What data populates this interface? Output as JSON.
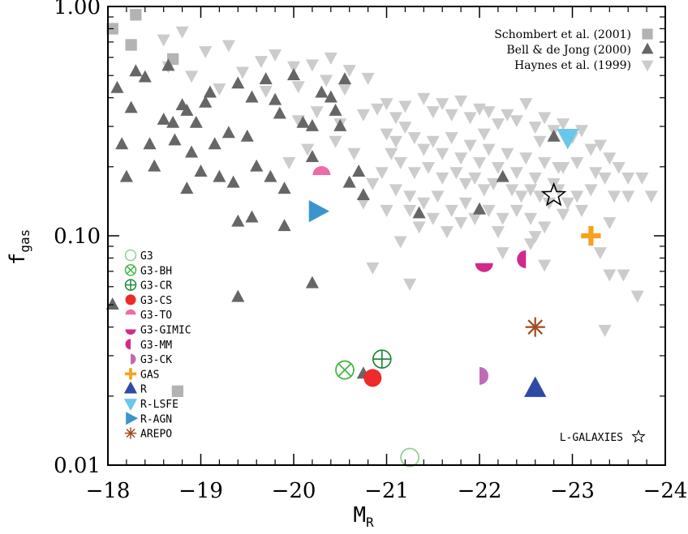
{
  "chart_data": {
    "type": "scatter",
    "xlabel": "M",
    "xlabel_sub": "R",
    "ylabel": "f",
    "ylabel_sub": "gas",
    "xlim": [
      -18,
      -24
    ],
    "ylim": [
      0.01,
      1.0
    ],
    "yscale": "log",
    "x_ticks": [
      -18,
      -19,
      -20,
      -21,
      -22,
      -23,
      -24
    ],
    "x_tick_labels": [
      "−18",
      "−19",
      "−20",
      "−21",
      "−22",
      "−23",
      "−24"
    ],
    "y_ticks": [
      0.01,
      0.1,
      1.0
    ],
    "y_tick_labels": [
      "0.01",
      "0.10",
      "1.00"
    ],
    "grid": false,
    "reference_legend_position": "top-right",
    "model_legend_position": "bottom-left",
    "reference_series": [
      {
        "name": "Schombert et al. (2001)",
        "marker": "square",
        "color": "#b3b3b3",
        "points": [
          [
            -18.05,
            0.8
          ],
          [
            -18.3,
            0.92
          ],
          [
            -18.25,
            0.68
          ],
          [
            -18.7,
            0.59
          ],
          [
            -18.75,
            0.021
          ]
        ]
      },
      {
        "name": "Bell & de Jong (2000)",
        "marker": "triangle-up",
        "color": "#666666",
        "points": [
          [
            -18.1,
            0.44
          ],
          [
            -18.15,
            0.25
          ],
          [
            -18.2,
            0.18
          ],
          [
            -18.25,
            0.36
          ],
          [
            -18.3,
            0.52
          ],
          [
            -18.4,
            0.49
          ],
          [
            -18.45,
            0.25
          ],
          [
            -18.5,
            0.2
          ],
          [
            -18.6,
            0.32
          ],
          [
            -18.65,
            0.55
          ],
          [
            -18.7,
            0.31
          ],
          [
            -18.72,
            0.26
          ],
          [
            -18.8,
            0.37
          ],
          [
            -18.85,
            0.35
          ],
          [
            -18.9,
            0.23
          ],
          [
            -18.95,
            0.31
          ],
          [
            -19.0,
            0.19
          ],
          [
            -19.05,
            0.38
          ],
          [
            -19.1,
            0.42
          ],
          [
            -19.15,
            0.25
          ],
          [
            -18.85,
            0.16
          ],
          [
            -19.2,
            0.18
          ],
          [
            -19.3,
            0.28
          ],
          [
            -19.35,
            0.17
          ],
          [
            -19.4,
            0.46
          ],
          [
            -19.5,
            0.27
          ],
          [
            -19.55,
            0.4
          ],
          [
            -19.6,
            0.2
          ],
          [
            -19.7,
            0.48
          ],
          [
            -19.75,
            0.18
          ],
          [
            -19.8,
            0.39
          ],
          [
            -19.85,
            0.34
          ],
          [
            -19.9,
            0.16
          ],
          [
            -20.0,
            0.5
          ],
          [
            -20.1,
            0.31
          ],
          [
            -20.2,
            0.3
          ],
          [
            -20.3,
            0.42
          ],
          [
            -20.4,
            0.4
          ],
          [
            -20.45,
            0.35
          ],
          [
            -20.5,
            0.3
          ],
          [
            -20.55,
            0.48
          ],
          [
            -20.6,
            0.17
          ],
          [
            -20.7,
            0.19
          ],
          [
            -20.75,
            0.15
          ],
          [
            -20.2,
            0.22
          ],
          [
            -19.4,
            0.115
          ],
          [
            -19.55,
            0.12
          ],
          [
            -19.9,
            0.11
          ],
          [
            -20.2,
            0.062
          ],
          [
            -19.4,
            0.054
          ],
          [
            -18.05,
            0.05
          ],
          [
            -20.75,
            0.025
          ],
          [
            -22.0,
            0.13
          ],
          [
            -22.25,
            0.18
          ],
          [
            -22.8,
            0.27
          ],
          [
            -21.35,
            0.125
          ]
        ]
      },
      {
        "name": "Haynes et al. (1999)",
        "marker": "triangle-down",
        "color": "#cccccc",
        "points": [
          [
            -18.6,
            0.72
          ],
          [
            -18.8,
            0.78
          ],
          [
            -19.05,
            0.64
          ],
          [
            -19.3,
            0.68
          ],
          [
            -19.65,
            0.58
          ],
          [
            -19.8,
            0.62
          ],
          [
            -20.0,
            0.55
          ],
          [
            -20.2,
            0.56
          ],
          [
            -20.4,
            0.6
          ],
          [
            -20.6,
            0.53
          ],
          [
            -18.65,
            0.55
          ],
          [
            -18.9,
            0.5
          ],
          [
            -19.2,
            0.44
          ],
          [
            -19.45,
            0.52
          ],
          [
            -19.7,
            0.43
          ],
          [
            -20.05,
            0.45
          ],
          [
            -20.35,
            0.48
          ],
          [
            -20.55,
            0.44
          ],
          [
            -20.8,
            0.49
          ],
          [
            -21.0,
            0.38
          ],
          [
            -20.05,
            0.32
          ],
          [
            -20.25,
            0.35
          ],
          [
            -20.5,
            0.31
          ],
          [
            -20.75,
            0.34
          ],
          [
            -20.9,
            0.36
          ],
          [
            -21.1,
            0.33
          ],
          [
            -21.2,
            0.37
          ],
          [
            -21.4,
            0.4
          ],
          [
            -21.5,
            0.35
          ],
          [
            -21.6,
            0.38
          ],
          [
            -21.7,
            0.34
          ],
          [
            -21.8,
            0.39
          ],
          [
            -21.9,
            0.33
          ],
          [
            -22.0,
            0.36
          ],
          [
            -22.1,
            0.35
          ],
          [
            -22.2,
            0.31
          ],
          [
            -22.3,
            0.34
          ],
          [
            -22.4,
            0.32
          ],
          [
            -22.5,
            0.38
          ],
          [
            -22.6,
            0.3
          ],
          [
            -22.7,
            0.33
          ],
          [
            -22.8,
            0.29
          ],
          [
            -22.9,
            0.31
          ],
          [
            -23.0,
            0.27
          ],
          [
            -23.1,
            0.29
          ],
          [
            -23.2,
            0.24
          ],
          [
            -23.3,
            0.25
          ],
          [
            -23.4,
            0.22
          ],
          [
            -23.5,
            0.2
          ],
          [
            -23.6,
            0.18
          ],
          [
            -21.0,
            0.28
          ],
          [
            -21.1,
            0.26
          ],
          [
            -21.2,
            0.3
          ],
          [
            -21.3,
            0.27
          ],
          [
            -21.4,
            0.24
          ],
          [
            -21.5,
            0.26
          ],
          [
            -21.6,
            0.23
          ],
          [
            -21.7,
            0.27
          ],
          [
            -21.8,
            0.22
          ],
          [
            -21.9,
            0.25
          ],
          [
            -22.0,
            0.21
          ],
          [
            -22.1,
            0.24
          ],
          [
            -22.2,
            0.2
          ],
          [
            -22.3,
            0.23
          ],
          [
            -22.4,
            0.19
          ],
          [
            -22.5,
            0.22
          ],
          [
            -22.6,
            0.18
          ],
          [
            -22.7,
            0.21
          ],
          [
            -22.8,
            0.17
          ],
          [
            -22.9,
            0.2
          ],
          [
            -21.15,
            0.21
          ],
          [
            -21.3,
            0.19
          ],
          [
            -21.45,
            0.2
          ],
          [
            -21.6,
            0.18
          ],
          [
            -21.75,
            0.19
          ],
          [
            -21.85,
            0.17
          ],
          [
            -21.95,
            0.18
          ],
          [
            -22.05,
            0.16
          ],
          [
            -22.15,
            0.17
          ],
          [
            -22.35,
            0.16
          ],
          [
            -22.45,
            0.15
          ],
          [
            -22.55,
            0.16
          ],
          [
            -22.65,
            0.15
          ],
          [
            -22.75,
            0.14
          ],
          [
            -22.85,
            0.16
          ],
          [
            -22.95,
            0.14
          ],
          [
            -23.05,
            0.15
          ],
          [
            -23.2,
            0.16
          ],
          [
            -23.35,
            0.18
          ],
          [
            -23.45,
            0.15
          ],
          [
            -21.1,
            0.16
          ],
          [
            -21.25,
            0.15
          ],
          [
            -21.4,
            0.14
          ],
          [
            -21.55,
            0.15
          ],
          [
            -21.7,
            0.13
          ],
          [
            -21.85,
            0.14
          ],
          [
            -21.95,
            0.12
          ],
          [
            -22.1,
            0.13
          ],
          [
            -22.25,
            0.12
          ],
          [
            -22.4,
            0.13
          ],
          [
            -22.55,
            0.12
          ],
          [
            -22.7,
            0.11
          ],
          [
            -21.35,
            0.11
          ],
          [
            -21.5,
            0.12
          ],
          [
            -21.65,
            0.105
          ],
          [
            -21.8,
            0.115
          ],
          [
            -22.2,
            0.105
          ],
          [
            -22.6,
            0.1
          ],
          [
            -22.9,
            0.125
          ],
          [
            -23.1,
            0.13
          ],
          [
            -21.0,
            0.13
          ],
          [
            -21.25,
            0.13
          ],
          [
            -20.75,
            0.14
          ],
          [
            -20.85,
            0.17
          ],
          [
            -20.95,
            0.19
          ],
          [
            -21.05,
            0.23
          ],
          [
            -20.65,
            0.23
          ],
          [
            -20.45,
            0.26
          ],
          [
            -20.15,
            0.24
          ],
          [
            -19.95,
            0.21
          ],
          [
            -23.4,
            0.115
          ],
          [
            -23.6,
            0.15
          ],
          [
            -23.85,
            0.15
          ],
          [
            -23.75,
            0.18
          ],
          [
            -23.3,
            0.085
          ],
          [
            -23.4,
            0.068
          ],
          [
            -23.55,
            0.068
          ],
          [
            -23.7,
            0.055
          ],
          [
            -23.35,
            0.039
          ],
          [
            -21.25,
            0.062
          ],
          [
            -20.85,
            0.073
          ],
          [
            -22.25,
            0.085
          ],
          [
            -22.7,
            0.075
          ],
          [
            -22.55,
            0.093
          ],
          [
            -21.15,
            0.095
          ],
          [
            -22.85,
            0.2
          ],
          [
            -23.05,
            0.21
          ],
          [
            -22.65,
            0.26
          ],
          [
            -23.25,
            0.19
          ],
          [
            -22.05,
            0.28
          ]
        ]
      }
    ],
    "model_series": [
      {
        "name": "G3",
        "marker": "circle-open",
        "color": "#8fd08f",
        "points": [
          [
            -21.25,
            0.0108
          ]
        ]
      },
      {
        "name": "G3-BH",
        "marker": "circle-x",
        "color": "#44b544",
        "points": [
          [
            -20.55,
            0.026
          ]
        ]
      },
      {
        "name": "G3-CR",
        "marker": "circle-plus",
        "color": "#1f8a3c",
        "points": [
          [
            -20.95,
            0.029
          ]
        ]
      },
      {
        "name": "G3-CS",
        "marker": "circle-filled",
        "color": "#ee2a2a",
        "points": [
          [
            -20.85,
            0.024
          ]
        ]
      },
      {
        "name": "G3-TO",
        "marker": "half-circle-top",
        "color": "#f06aa8",
        "points": [
          [
            -20.3,
            0.184
          ]
        ]
      },
      {
        "name": "G3-GIMIC",
        "marker": "half-circle-bottom",
        "color": "#d12a8a",
        "points": [
          [
            -22.05,
            0.076
          ]
        ]
      },
      {
        "name": "G3-MM",
        "marker": "half-circle-left",
        "color": "#d12a8a",
        "points": [
          [
            -22.5,
            0.079
          ]
        ]
      },
      {
        "name": "G3-CK",
        "marker": "half-circle-right",
        "color": "#c06ab8",
        "points": [
          [
            -22.0,
            0.0245
          ]
        ]
      },
      {
        "name": "GAS",
        "marker": "plus-thick",
        "color": "#f5a21e",
        "points": [
          [
            -23.2,
            0.1
          ]
        ]
      },
      {
        "name": "R",
        "marker": "triangle-up",
        "color": "#2f4aa5",
        "points": [
          [
            -22.6,
            0.0215
          ]
        ]
      },
      {
        "name": "R-LSFE",
        "marker": "triangle-down",
        "color": "#69c8ea",
        "points": [
          [
            -22.95,
            0.27
          ]
        ]
      },
      {
        "name": "R-AGN",
        "marker": "triangle-right",
        "color": "#3b95cc",
        "points": [
          [
            -20.25,
            0.128
          ]
        ]
      },
      {
        "name": "AREPO",
        "marker": "asterisk",
        "color": "#a34a20",
        "points": [
          [
            -22.6,
            0.04
          ]
        ]
      },
      {
        "name": "L-GALAXIES",
        "marker": "star-open",
        "color": "#000000",
        "points": [
          [
            -22.8,
            0.15
          ]
        ]
      }
    ],
    "legend_label_lgalaxies": "L-GALAXIES"
  }
}
